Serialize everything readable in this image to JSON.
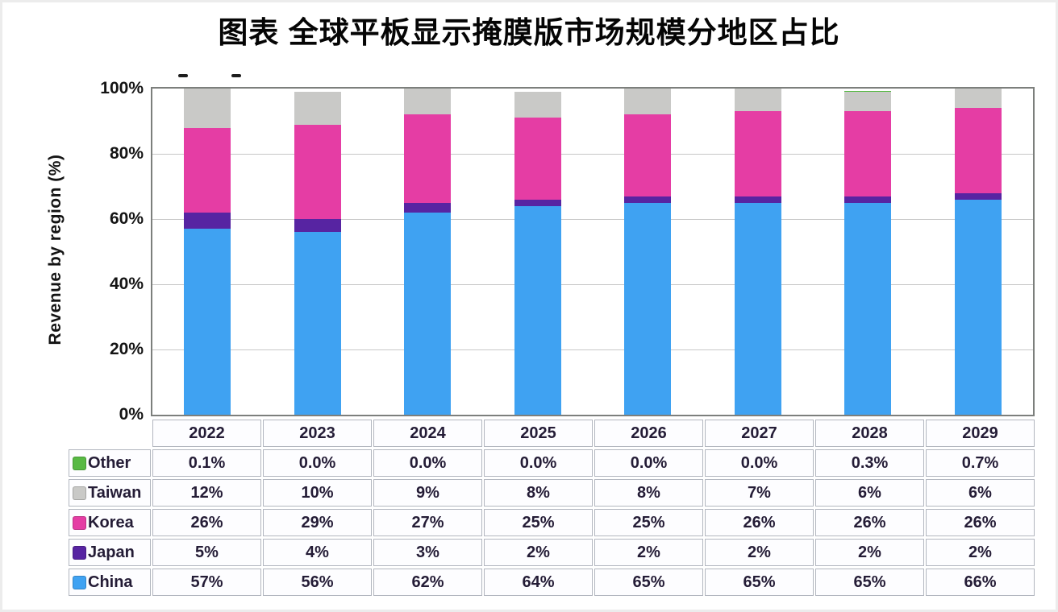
{
  "page": {
    "title": "图表 全球平板显示掩膜版市场规模分地区占比"
  },
  "chart_data": {
    "type": "bar",
    "stacked": true,
    "title": "图表 全球平板显示掩膜版市场规模分地区占比",
    "xlabel": "",
    "ylabel": "Revenue by region (%)",
    "ylim": [
      0,
      100
    ],
    "grid": "horizontal",
    "legend_position": "table-left",
    "yticks": [
      "0%",
      "20%",
      "40%",
      "60%",
      "80%",
      "100%"
    ],
    "categories": [
      "2022",
      "2023",
      "2024",
      "2025",
      "2026",
      "2027",
      "2028",
      "2029"
    ],
    "series": [
      {
        "name": "Other",
        "color": "#58B944",
        "values": [
          0.1,
          0.0,
          0.0,
          0.0,
          0.0,
          0.0,
          0.3,
          0.7
        ],
        "display": [
          "0.1%",
          "0.0%",
          "0.0%",
          "0.0%",
          "0.0%",
          "0.0%",
          "0.3%",
          "0.7%"
        ]
      },
      {
        "name": "Taiwan",
        "color": "#C9C9C7",
        "values": [
          12,
          10,
          9,
          8,
          8,
          7,
          6,
          6
        ],
        "display": [
          "12%",
          "10%",
          "9%",
          "8%",
          "8%",
          "7%",
          "6%",
          "6%"
        ]
      },
      {
        "name": "Korea",
        "color": "#E53DA4",
        "values": [
          26,
          29,
          27,
          25,
          25,
          26,
          26,
          26
        ],
        "display": [
          "26%",
          "29%",
          "27%",
          "25%",
          "25%",
          "26%",
          "26%",
          "26%"
        ]
      },
      {
        "name": "Japan",
        "color": "#5724A2",
        "values": [
          5,
          4,
          3,
          2,
          2,
          2,
          2,
          2
        ],
        "display": [
          "5%",
          "4%",
          "3%",
          "2%",
          "2%",
          "2%",
          "2%",
          "2%"
        ]
      },
      {
        "name": "China",
        "color": "#3FA2F2",
        "values": [
          57,
          56,
          62,
          64,
          65,
          65,
          65,
          66
        ],
        "display": [
          "57%",
          "56%",
          "62%",
          "64%",
          "65%",
          "65%",
          "65%",
          "66%"
        ]
      }
    ]
  }
}
